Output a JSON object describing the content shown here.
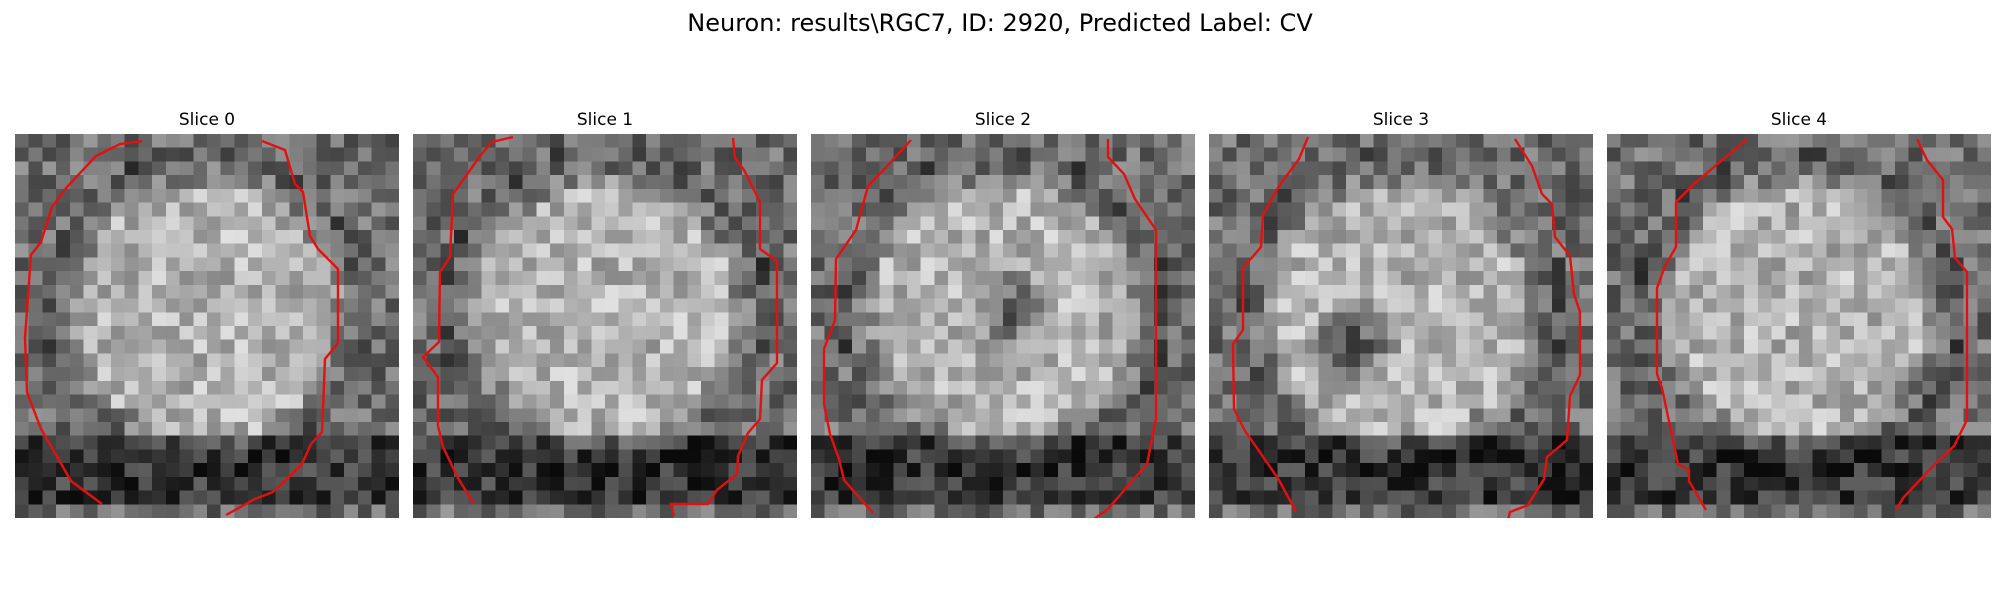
{
  "figure": {
    "title": "Neuron: results\\RGC7, ID: 2920, Predicted Label: CV"
  },
  "slices": [
    {
      "label": "Slice 0",
      "dark_spot": "none"
    },
    {
      "label": "Slice 1",
      "dark_spot": "none"
    },
    {
      "label": "Slice 2",
      "dark_spot": "center"
    },
    {
      "label": "Slice 3",
      "dark_spot": "lower-left"
    },
    {
      "label": "Slice 4",
      "dark_spot": "none"
    }
  ],
  "colors": {
    "contour": "#e41010",
    "colormap": "grayscale"
  },
  "image_grid": "28x28 pixel patches"
}
